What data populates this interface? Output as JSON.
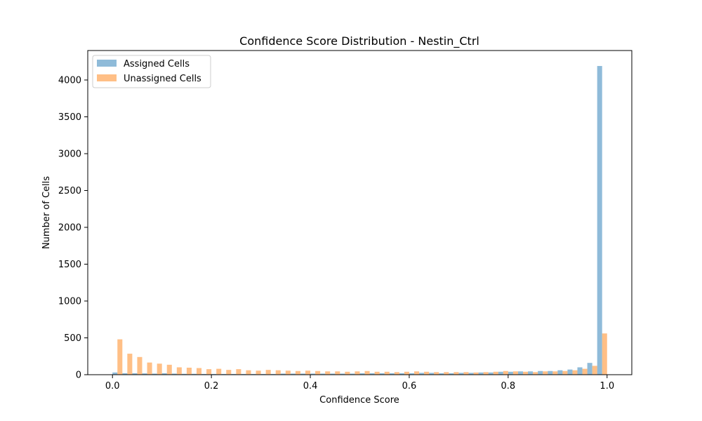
{
  "chart_data": {
    "type": "bar",
    "title": "Confidence Score Distribution - Nestin_Ctrl",
    "xlabel": "Confidence Score",
    "ylabel": "Number of Cells",
    "xlim": [
      -0.05,
      1.05
    ],
    "ylim": [
      0,
      4400
    ],
    "xticks": [
      0.0,
      0.2,
      0.4,
      0.6,
      0.8,
      1.0
    ],
    "xtick_labels": [
      "0.0",
      "0.2",
      "0.4",
      "0.6",
      "0.8",
      "1.0"
    ],
    "yticks": [
      0,
      500,
      1000,
      1500,
      2000,
      2500,
      3000,
      3500,
      4000
    ],
    "ytick_labels": [
      "0",
      "500",
      "1000",
      "1500",
      "2000",
      "2500",
      "3000",
      "3500",
      "4000"
    ],
    "bins": {
      "start": 0.0,
      "width": 0.02,
      "count": 50
    },
    "grid": false,
    "legend_position": "top-left",
    "series": [
      {
        "name": "Assigned Cells",
        "color": "#1f77b4",
        "opacity": 0.5,
        "values": [
          30,
          20,
          20,
          18,
          15,
          20,
          15,
          12,
          12,
          10,
          10,
          10,
          10,
          10,
          10,
          10,
          10,
          15,
          15,
          15,
          15,
          15,
          15,
          15,
          15,
          20,
          20,
          20,
          20,
          20,
          20,
          25,
          25,
          20,
          20,
          25,
          25,
          30,
          30,
          40,
          40,
          45,
          45,
          50,
          50,
          60,
          70,
          100,
          160,
          4190
        ]
      },
      {
        "name": "Unassigned Cells",
        "color": "#ff7f0e",
        "opacity": 0.5,
        "values": [
          480,
          285,
          240,
          165,
          150,
          135,
          100,
          95,
          90,
          75,
          80,
          65,
          75,
          60,
          55,
          65,
          60,
          55,
          50,
          55,
          50,
          45,
          45,
          40,
          45,
          50,
          40,
          40,
          35,
          40,
          45,
          40,
          35,
          35,
          35,
          35,
          30,
          35,
          40,
          50,
          45,
          40,
          35,
          45,
          45,
          50,
          60,
          80,
          120,
          560
        ]
      }
    ]
  }
}
